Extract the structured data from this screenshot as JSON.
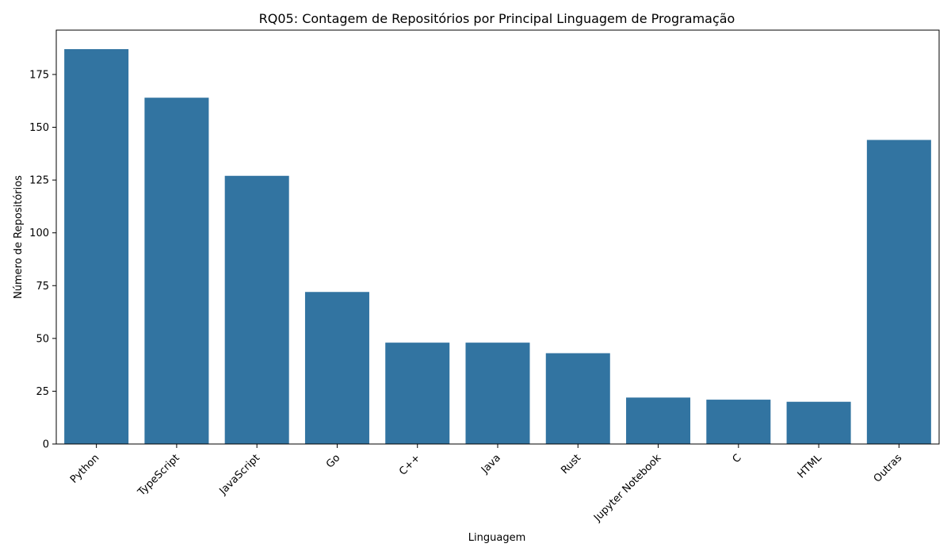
{
  "chart_data": {
    "type": "bar",
    "title": "RQ05: Contagem de Repositórios por Principal Linguagem de Programação",
    "xlabel": "Linguagem",
    "ylabel": "Número de Repositórios",
    "categories": [
      "Python",
      "TypeScript",
      "JavaScript",
      "Go",
      "C++",
      "Java",
      "Rust",
      "Jupyter Notebook",
      "C",
      "HTML",
      "Outras"
    ],
    "values": [
      187,
      164,
      127,
      72,
      48,
      48,
      43,
      22,
      21,
      20,
      144
    ],
    "ylim": [
      0,
      196
    ],
    "yticks": [
      0,
      25,
      50,
      75,
      100,
      125,
      150,
      175
    ],
    "bar_color": "#3274a1",
    "grid": false,
    "legend": "none"
  }
}
